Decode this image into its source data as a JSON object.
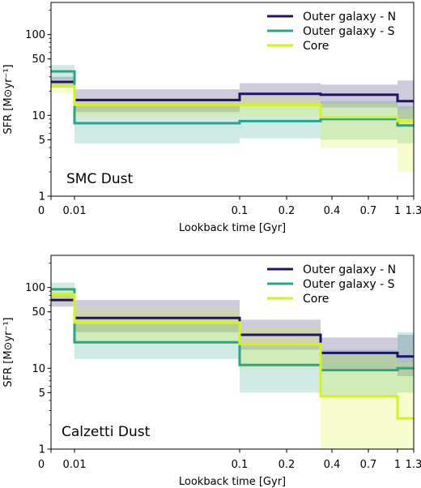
{
  "chart_data": [
    {
      "type": "line",
      "panel_label": "SMC Dust",
      "xlabel": "Lookback time [Gyr]",
      "ylabel": "SFR [M⊙yr⁻¹]",
      "yscale": "log",
      "ylim": [
        1,
        250
      ],
      "ytick_values": [
        1,
        5,
        10,
        50,
        100
      ],
      "ytick_labels": [
        "1",
        "5",
        "10",
        "50",
        "100"
      ],
      "xtick_labels": [
        "0",
        "0.01",
        "0.1",
        "0.2",
        "0.4",
        "0.7",
        "1",
        "1.3"
      ],
      "bin_edges": [
        0,
        0.01,
        0.1,
        0.3,
        1.0,
        1.3
      ],
      "grid": false,
      "legend_position": "top-right",
      "series": [
        {
          "name": "Outer galaxy - N",
          "color": "#1f1466",
          "values": [
            26,
            15.5,
            18.5,
            18,
            15
          ],
          "lower": [
            22,
            11,
            13,
            12.5,
            9
          ],
          "upper": [
            30,
            21,
            25,
            24,
            27
          ]
        },
        {
          "name": "Outer galaxy - S",
          "color": "#2aa489",
          "values": [
            35,
            8,
            8.5,
            9,
            7.5
          ],
          "lower": [
            28,
            4.5,
            5.2,
            5,
            4.5
          ],
          "upper": [
            42,
            13,
            14,
            15,
            13
          ]
        },
        {
          "name": "Core",
          "color": "#d4f21c",
          "values": [
            23,
            13.5,
            13.5,
            9.5,
            8.5
          ],
          "lower": [
            19,
            9.5,
            9.5,
            4,
            2
          ],
          "upper": [
            27,
            17,
            17,
            14,
            12
          ]
        }
      ]
    },
    {
      "type": "line",
      "panel_label": "Calzetti Dust",
      "xlabel": "Lookback time [Gyr]",
      "ylabel": "SFR [M⊙yr⁻¹]",
      "yscale": "log",
      "ylim": [
        1,
        250
      ],
      "ytick_values": [
        1,
        5,
        10,
        50,
        100
      ],
      "ytick_labels": [
        "1",
        "5",
        "10",
        "50",
        "100"
      ],
      "xtick_labels": [
        "0",
        "0.01",
        "0.1",
        "0.2",
        "0.4",
        "0.7",
        "1",
        "1.3"
      ],
      "bin_edges": [
        0,
        0.01,
        0.1,
        0.3,
        1.0,
        1.3
      ],
      "grid": false,
      "legend_position": "top-right",
      "series": [
        {
          "name": "Outer galaxy - N",
          "color": "#1f1466",
          "values": [
            70,
            42,
            26,
            15.5,
            14
          ],
          "lower": [
            58,
            28,
            17,
            9.5,
            8
          ],
          "upper": [
            85,
            70,
            40,
            24,
            26
          ]
        },
        {
          "name": "Outer galaxy - S",
          "color": "#2aa489",
          "values": [
            95,
            21,
            11,
            9.5,
            10
          ],
          "lower": [
            78,
            13,
            5,
            4.5,
            5
          ],
          "upper": [
            115,
            35,
            19,
            17,
            28
          ]
        },
        {
          "name": "Core",
          "color": "#d4f21c",
          "values": [
            82,
            37,
            20,
            4.5,
            2.4
          ],
          "lower": [
            65,
            20,
            10,
            1,
            1
          ],
          "upper": [
            100,
            55,
            32,
            15,
            12
          ]
        }
      ]
    }
  ]
}
